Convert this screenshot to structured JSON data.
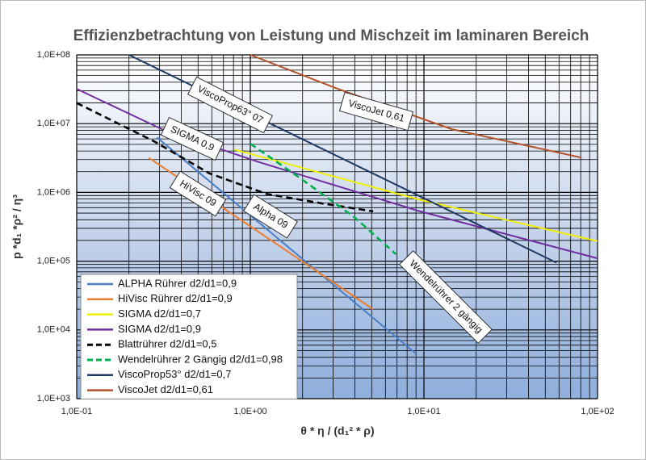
{
  "chart_data": {
    "type": "line",
    "title": "Effizienzbetrachtung von Leistung und Mischzeit im laminaren Bereich",
    "x_label": "θ * η / (d₁² * ρ)",
    "y_label": "p *d₁ *ρ² / η³",
    "log_x": true,
    "log_y": true,
    "grid": true,
    "minor_grid": true,
    "xlim": [
      0.1,
      100
    ],
    "ylim": [
      1000,
      100000000
    ],
    "xticks": [
      {
        "value": 0.1,
        "label": "1,0E-01"
      },
      {
        "value": 1,
        "label": "1,0E+00"
      },
      {
        "value": 10,
        "label": "1,0E+01"
      },
      {
        "value": 100,
        "label": "1,0E+02"
      }
    ],
    "yticks": [
      {
        "value": 1000,
        "label": "1,0E+03"
      },
      {
        "value": 10000,
        "label": "1,0E+04"
      },
      {
        "value": 100000,
        "label": "1,0E+05"
      },
      {
        "value": 1000000,
        "label": "1,0E+06"
      },
      {
        "value": 10000000,
        "label": "1,0E+07"
      },
      {
        "value": 100000000,
        "label": "1,0E+08"
      }
    ],
    "legend_position": "lower left",
    "series": [
      {
        "name": "ALPHA Rührer d2/d1=0,9",
        "color": "#4a7fc4",
        "dashed": false,
        "x": [
          0.29,
          9
        ],
        "values": [
          6300000,
          4500
        ]
      },
      {
        "name": "HiVisc Rührer d2/d1=0,9",
        "color": "#ed7d31",
        "dashed": false,
        "x": [
          0.26,
          5.1
        ],
        "values": [
          3200000,
          20000
        ]
      },
      {
        "name": "SIGMA d2/d1=0,7",
        "color": "#f0f000",
        "dashed": false,
        "x": [
          0.81,
          9.5,
          100
        ],
        "values": [
          4200000,
          780000,
          195000
        ]
      },
      {
        "name": "SIGMA d2/d1=0,9",
        "color": "#7030a0",
        "dashed": false,
        "x": [
          0.1,
          0.31,
          1.1,
          9.5,
          100
        ],
        "values": [
          32000000,
          8300000,
          2800000,
          530000,
          110000
        ]
      },
      {
        "name": "Blattrührer d2/d1=0,5",
        "color": "#000000",
        "dashed": true,
        "x": [
          0.1,
          0.28,
          0.58,
          1.24,
          2.6,
          5.1
        ],
        "values": [
          20000000,
          5500000,
          1900000,
          950000,
          690000,
          530000
        ]
      },
      {
        "name": "Wendelrührer 2 Gängig d2/d1=0,98",
        "color": "#00b050",
        "dashed": true,
        "x": [
          1.0,
          1.9,
          4.0,
          6.9
        ],
        "values": [
          5100000,
          1670000,
          430000,
          126000
        ]
      },
      {
        "name": "ViscoProp53° d2/d1=0,7",
        "color": "#1f3864",
        "dashed": false,
        "x": [
          0.2,
          58
        ],
        "values": [
          100000000,
          95000
        ]
      },
      {
        "name": "ViscoJet d2/d1=0,61",
        "color": "#b5522a",
        "dashed": false,
        "x": [
          1.0,
          3.2,
          14.5,
          81
        ],
        "values": [
          100000000,
          32000000,
          8300000,
          3200000
        ]
      }
    ],
    "annotations": [
      "ViscoProp63° 07",
      "ViscoJet 0,61",
      "SIGMA 0,9",
      "HiVisc 09",
      "Alpha 09",
      "Wendelrührer 2 gängig"
    ]
  }
}
